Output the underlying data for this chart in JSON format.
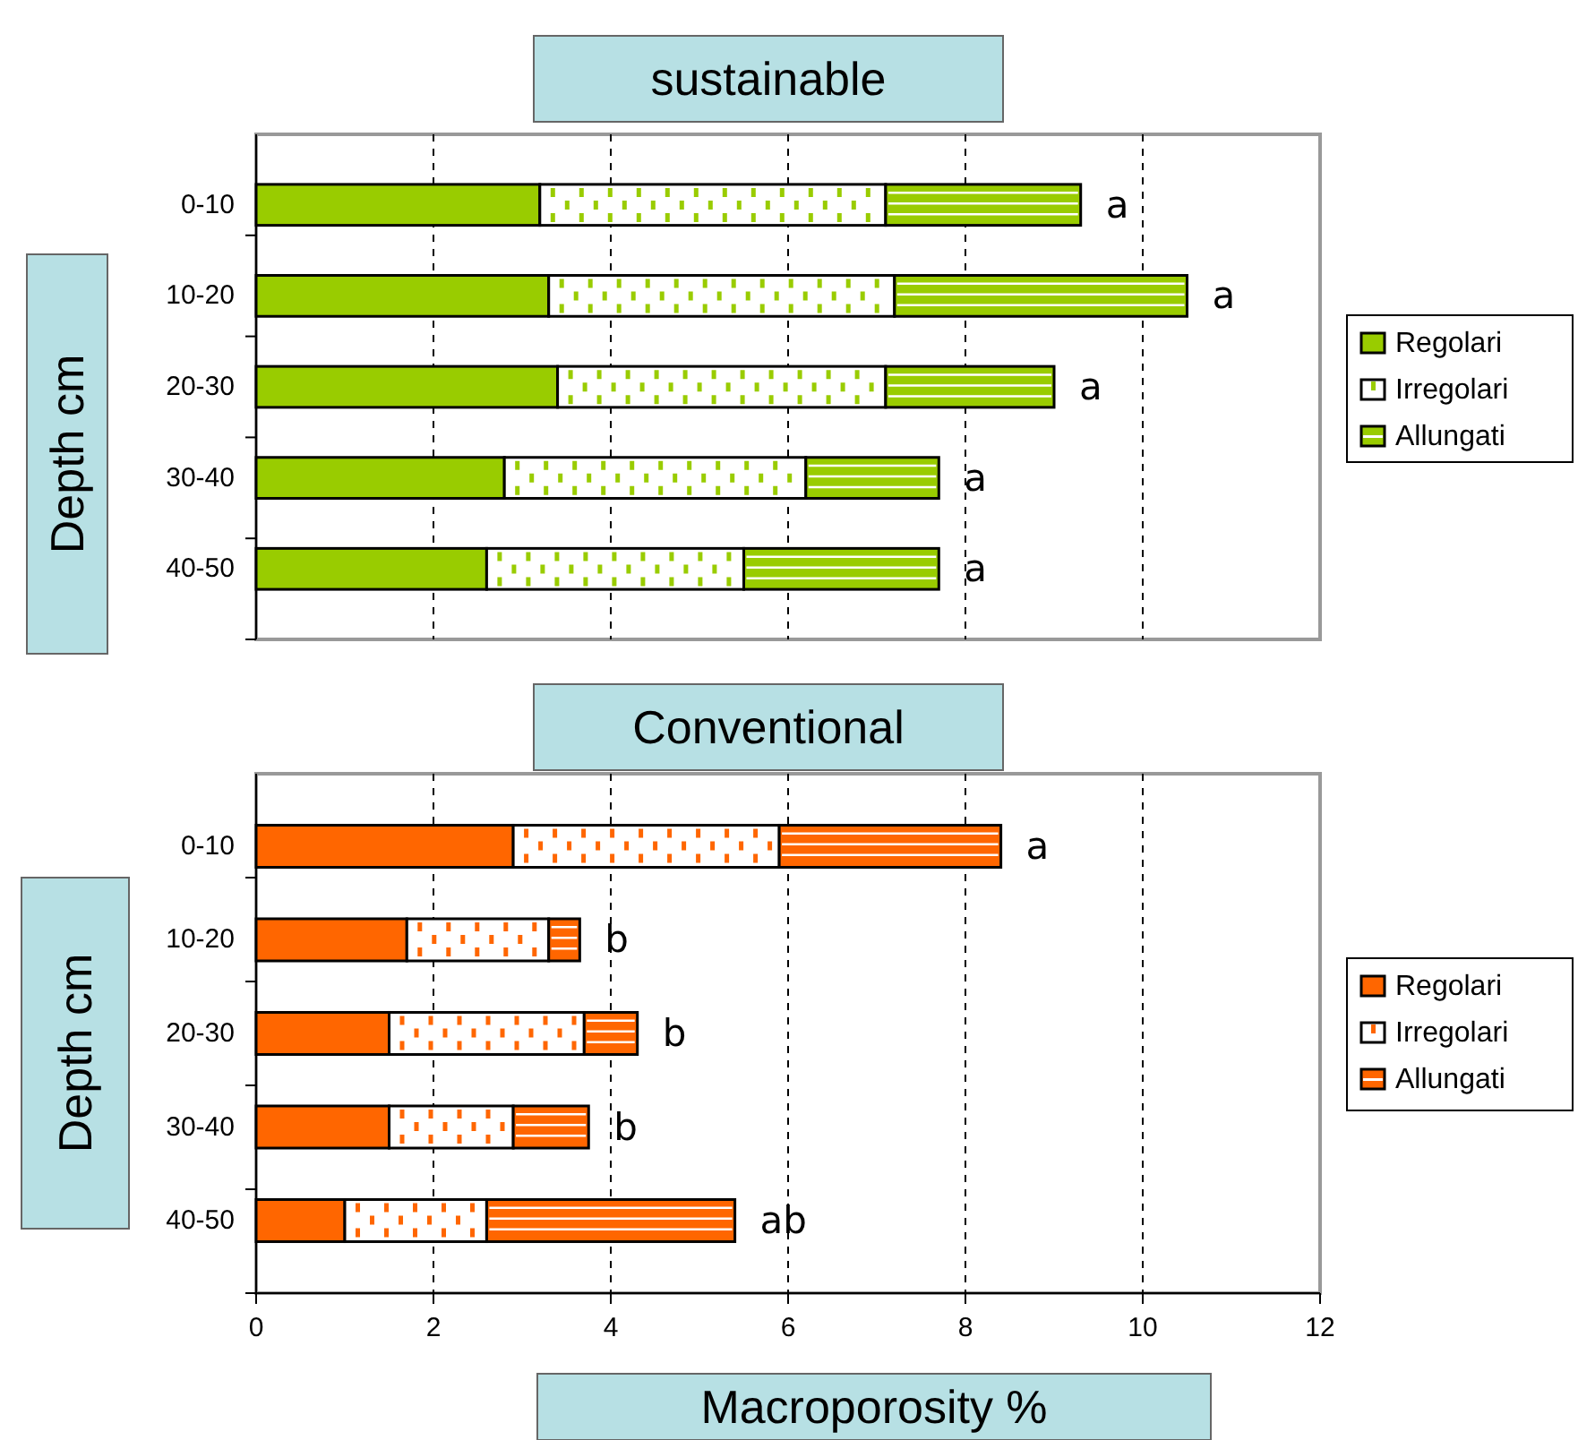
{
  "chart_data": [
    {
      "type": "bar",
      "orientation": "horizontal",
      "stacked": true,
      "title": "sustainable",
      "ylabel": "Depth cm",
      "categories": [
        "0-10",
        "10-20",
        "20-30",
        "30-40",
        "40-50"
      ],
      "series": [
        {
          "name": "Regolari",
          "color": "#99cc00",
          "values": [
            3.2,
            3.3,
            3.4,
            2.8,
            2.6
          ]
        },
        {
          "name": "Irregolari",
          "color": "#ffffff",
          "values": [
            3.9,
            3.9,
            3.7,
            3.4,
            2.9
          ]
        },
        {
          "name": "Allungati",
          "color": "#99cc00",
          "values": [
            2.2,
            3.3,
            1.9,
            1.5,
            2.2
          ]
        }
      ],
      "xlim": [
        0,
        12
      ],
      "xticks": [
        0,
        2,
        4,
        6,
        8,
        10,
        12
      ],
      "tick_labels": "y",
      "grid": "x",
      "legend": "right",
      "annotations": [
        "a",
        "a",
        "a",
        "a",
        "a"
      ]
    },
    {
      "type": "bar",
      "orientation": "horizontal",
      "stacked": true,
      "title": "Conventional",
      "ylabel": "Depth cm",
      "xlabel": "Macroporosity %",
      "categories": [
        "0-10",
        "10-20",
        "20-30",
        "30-40",
        "40-50"
      ],
      "series": [
        {
          "name": "Regolari",
          "color": "#ff6600",
          "values": [
            2.9,
            1.7,
            1.5,
            1.5,
            1.0
          ]
        },
        {
          "name": "Irregolari",
          "color": "#ffffff",
          "values": [
            3.0,
            1.6,
            2.2,
            1.4,
            1.6
          ]
        },
        {
          "name": "Allungati",
          "color": "#ff6600",
          "values": [
            2.5,
            0.35,
            0.6,
            0.85,
            2.8
          ]
        }
      ],
      "xlim": [
        0,
        12
      ],
      "xticks": [
        0,
        2,
        4,
        6,
        8,
        10,
        12
      ],
      "grid": "x",
      "legend": "right",
      "annotations": [
        "a",
        "b",
        "b",
        "b",
        "ab"
      ]
    }
  ]
}
